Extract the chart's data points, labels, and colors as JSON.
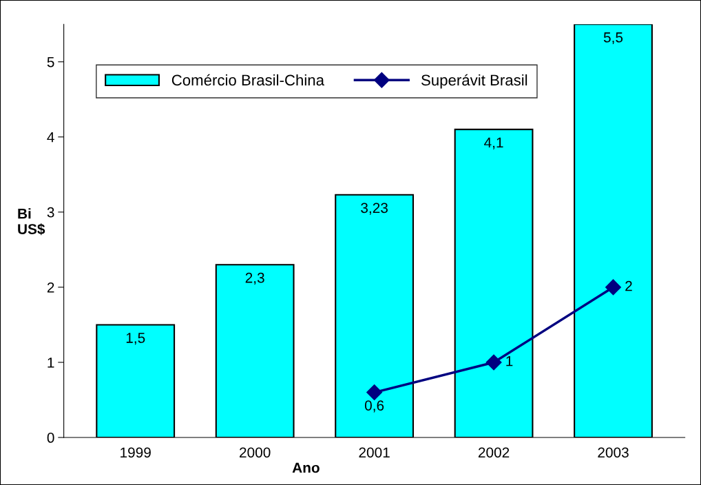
{
  "chart_data": {
    "type": "bar",
    "xlabel": "Ano",
    "ylabel": "Bi\nUS$",
    "categories": [
      "1999",
      "2000",
      "2001",
      "2002",
      "2003"
    ],
    "series": [
      {
        "name": "Comércio Brasil-China",
        "color": "#00ffff",
        "values": [
          1.5,
          2.3,
          3.23,
          4.1,
          5.5
        ],
        "value_labels": [
          "1,5",
          "2,3",
          "3,23",
          "4,1",
          "5,5"
        ]
      },
      {
        "name": "Superávit Brasil",
        "type": "line",
        "color": "#000080",
        "marker": "diamond",
        "values": [
          null,
          null,
          0.6,
          1,
          2
        ],
        "value_labels": [
          null,
          null,
          "0,6",
          "1",
          "2"
        ]
      }
    ],
    "ylim": [
      0,
      5.5
    ],
    "yticks": [
      0,
      1,
      2,
      3,
      4,
      5
    ],
    "grid": false,
    "legend": "top left"
  }
}
